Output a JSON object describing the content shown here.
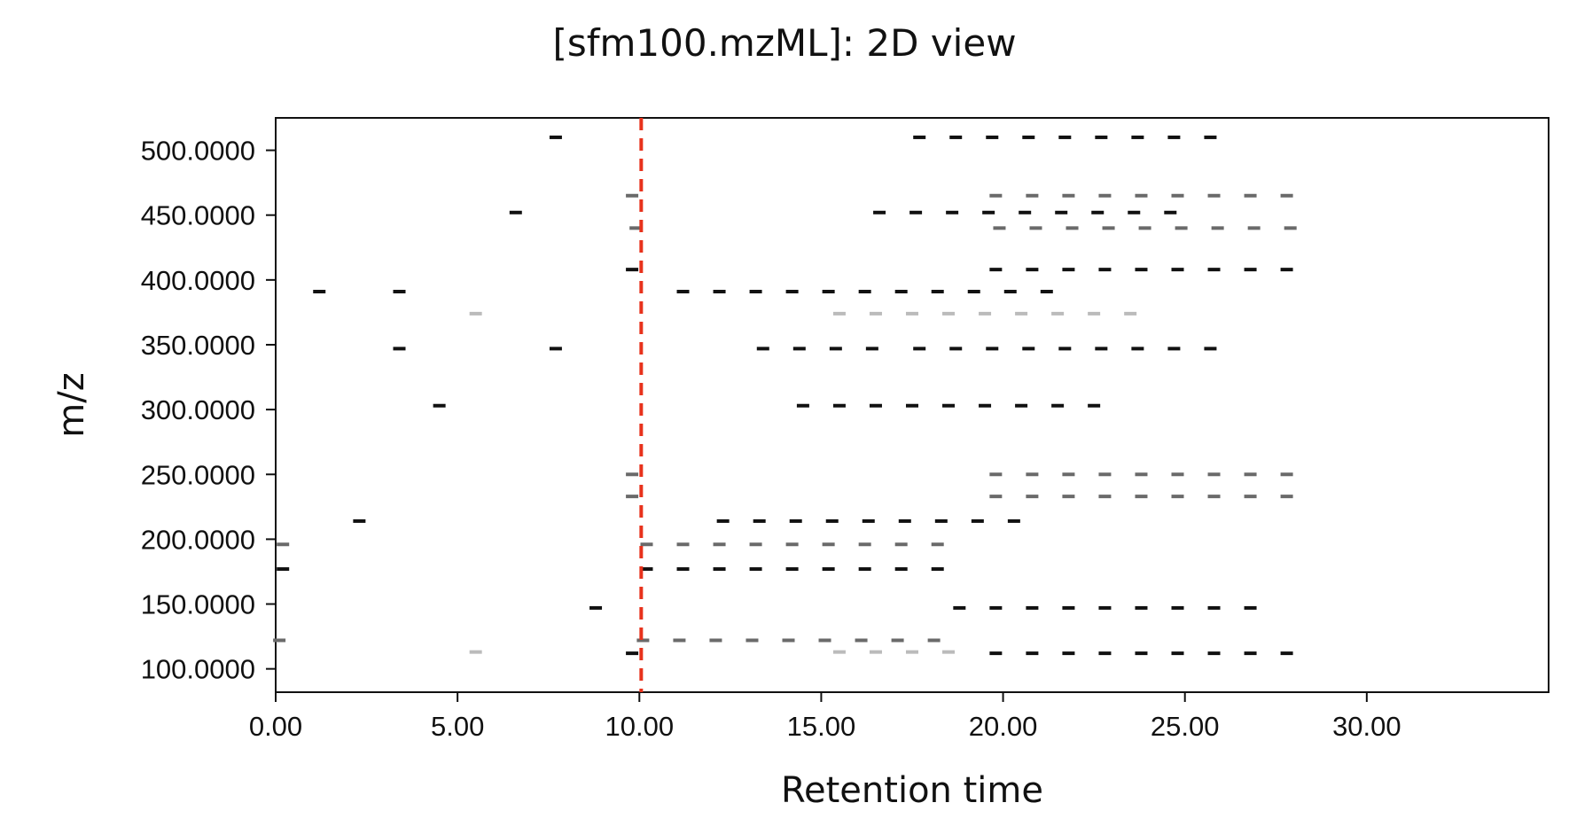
{
  "chart_data": {
    "type": "scatter",
    "title": "[sfm100.mzML]: 2D view",
    "xlabel": "Retention time",
    "ylabel": "m/z",
    "xlim": [
      0,
      35
    ],
    "ylim": [
      82,
      525
    ],
    "xticks": [
      {
        "value": 0,
        "label": "0.00"
      },
      {
        "value": 5,
        "label": "5.00"
      },
      {
        "value": 10,
        "label": "10.00"
      },
      {
        "value": 15,
        "label": "15.00"
      },
      {
        "value": 20,
        "label": "20.00"
      },
      {
        "value": 25,
        "label": "25.00"
      },
      {
        "value": 30,
        "label": "30.00"
      }
    ],
    "yticks": [
      {
        "value": 100,
        "label": "100.0000"
      },
      {
        "value": 150,
        "label": "150.0000"
      },
      {
        "value": 200,
        "label": "200.0000"
      },
      {
        "value": 250,
        "label": "250.0000"
      },
      {
        "value": 300,
        "label": "300.0000"
      },
      {
        "value": 350,
        "label": "350.0000"
      },
      {
        "value": 400,
        "label": "400.0000"
      },
      {
        "value": 450,
        "label": "450.0000"
      },
      {
        "value": 500,
        "label": "500.0000"
      }
    ],
    "marker": {
      "rt": 10.05,
      "color": "#e8321c",
      "style": "dashed"
    },
    "grid": false,
    "legend": "none",
    "peak_colors": {
      "dark": "#111111",
      "mid": "#6a6a6a",
      "light": "#bbbbbb"
    },
    "peaks": [
      {
        "mz": 510,
        "level": "dark",
        "rt": [
          7.7,
          17.7,
          18.7,
          19.7,
          20.7,
          21.7,
          22.7,
          23.7,
          24.7,
          25.7
        ]
      },
      {
        "mz": 465,
        "level": "mid",
        "rt": [
          9.8,
          19.8,
          20.8,
          21.8,
          22.8,
          23.8,
          24.8,
          25.8,
          26.8,
          27.8
        ]
      },
      {
        "mz": 452,
        "level": "dark",
        "rt": [
          6.6,
          16.6,
          17.6,
          18.6,
          19.6,
          20.6,
          21.6,
          22.6,
          23.6,
          24.6
        ]
      },
      {
        "mz": 440,
        "level": "mid",
        "rt": [
          9.9,
          19.9,
          20.9,
          21.9,
          22.9,
          23.9,
          24.9,
          25.9,
          26.9,
          27.9
        ]
      },
      {
        "mz": 408,
        "level": "dark",
        "rt": [
          9.8,
          19.8,
          20.8,
          21.8,
          22.8,
          23.8,
          24.8,
          25.8,
          26.8,
          27.8
        ]
      },
      {
        "mz": 391,
        "level": "dark",
        "rt": [
          1.2,
          3.4,
          11.2,
          12.2,
          13.2,
          14.2,
          15.2,
          16.2,
          17.2,
          18.2,
          19.2,
          20.2,
          21.2
        ]
      },
      {
        "mz": 374,
        "level": "light",
        "rt": [
          5.5,
          15.5,
          16.5,
          17.5,
          18.5,
          19.5,
          20.5,
          21.5,
          22.5,
          23.5
        ]
      },
      {
        "mz": 347,
        "level": "dark",
        "rt": [
          3.4,
          7.7,
          13.4,
          14.4,
          15.4,
          16.4,
          17.7,
          18.7,
          19.7,
          20.7,
          21.7,
          22.7,
          23.7,
          24.7,
          25.7
        ]
      },
      {
        "mz": 303,
        "level": "dark",
        "rt": [
          4.5,
          14.5,
          15.5,
          16.5,
          17.5,
          18.5,
          19.5,
          20.5,
          21.5,
          22.5
        ]
      },
      {
        "mz": 250,
        "level": "mid",
        "rt": [
          9.8,
          19.8,
          20.8,
          21.8,
          22.8,
          23.8,
          24.8,
          25.8,
          26.8,
          27.8
        ]
      },
      {
        "mz": 233,
        "level": "mid",
        "rt": [
          9.8,
          19.8,
          20.8,
          21.8,
          22.8,
          23.8,
          24.8,
          25.8,
          26.8,
          27.8
        ]
      },
      {
        "mz": 214,
        "level": "dark",
        "rt": [
          2.3,
          12.3,
          13.3,
          14.3,
          15.3,
          16.3,
          17.3,
          18.3,
          19.3,
          20.3
        ]
      },
      {
        "mz": 196,
        "level": "mid",
        "rt": [
          0.2,
          10.2,
          11.2,
          12.2,
          13.2,
          14.2,
          15.2,
          16.2,
          17.2,
          18.2
        ]
      },
      {
        "mz": 177,
        "level": "dark",
        "rt": [
          0.2,
          10.2,
          11.2,
          12.2,
          13.2,
          14.2,
          15.2,
          16.2,
          17.2,
          18.2
        ]
      },
      {
        "mz": 147,
        "level": "dark",
        "rt": [
          8.8,
          18.8,
          19.8,
          20.8,
          21.8,
          22.8,
          23.8,
          24.8,
          25.8,
          26.8
        ]
      },
      {
        "mz": 122,
        "level": "mid",
        "rt": [
          0.1,
          10.1,
          11.1,
          12.1,
          13.1,
          14.1,
          15.1,
          16.1,
          17.1,
          18.1
        ]
      },
      {
        "mz": 113,
        "level": "light",
        "rt": [
          5.5,
          15.5,
          16.5,
          17.5,
          18.5
        ]
      },
      {
        "mz": 112,
        "level": "dark",
        "rt": [
          9.8,
          19.8,
          20.8,
          21.8,
          22.8,
          23.8,
          24.8,
          25.8,
          26.8,
          27.8
        ]
      }
    ]
  }
}
